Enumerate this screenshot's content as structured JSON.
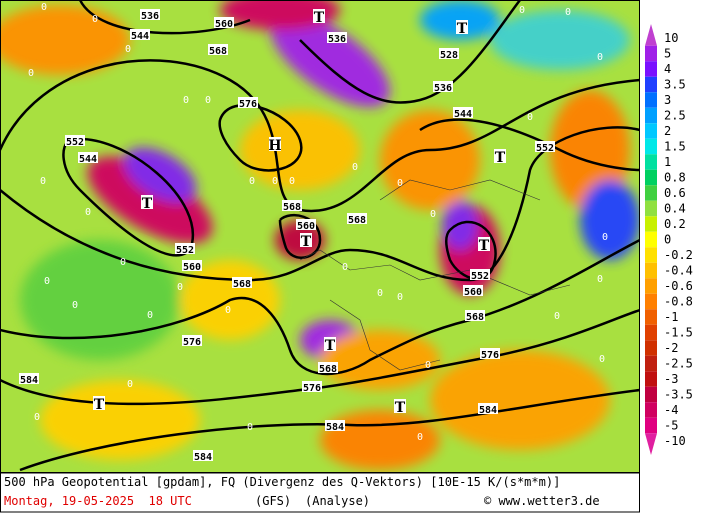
{
  "map": {
    "contour_labels": [
      "536",
      "560",
      "568",
      "544",
      "536",
      "528",
      "536",
      "544",
      "576",
      "552",
      "544",
      "552",
      "552",
      "560",
      "568",
      "560",
      "568",
      "552",
      "560",
      "568",
      "576",
      "568",
      "576",
      "568",
      "576",
      "584",
      "584",
      "584",
      "584"
    ],
    "centers": [
      "T",
      "T",
      "T",
      "T",
      "T",
      "T",
      "T",
      "T",
      "T",
      "H"
    ],
    "field_labels": [
      "0",
      "0",
      "0",
      "0",
      "0",
      "0",
      "0",
      "0",
      "0",
      "0",
      "0",
      "0",
      "0",
      "0",
      "0",
      "0",
      "0",
      "0",
      "0",
      "0",
      "0",
      "0",
      "0",
      "0",
      "0",
      "0",
      "0",
      "0",
      "0",
      "0",
      "0",
      "0",
      "0",
      "0",
      "0",
      "0"
    ]
  },
  "colorbar": {
    "labels": [
      "10",
      "5",
      "4",
      "3.5",
      "3",
      "2.5",
      "2",
      "1.5",
      "1",
      "0.8",
      "0.6",
      "0.4",
      "0.2",
      "0",
      "-0.2",
      "-0.4",
      "-0.6",
      "-0.8",
      "-1",
      "-1.5",
      "-2",
      "-2.5",
      "-3",
      "-3.5",
      "-4",
      "-5",
      "-10"
    ],
    "colors": [
      "#c040d0",
      "#a020e8",
      "#7a10ff",
      "#2040ff",
      "#0070ff",
      "#00a0ff",
      "#00c8ff",
      "#00e8e8",
      "#00e0a0",
      "#00d060",
      "#40d040",
      "#90e040",
      "#c8f000",
      "#ffff00",
      "#ffe000",
      "#ffc000",
      "#ffa000",
      "#ff8000",
      "#f06000",
      "#e04000",
      "#d03000",
      "#c02010",
      "#c01010",
      "#c00040",
      "#d00060",
      "#e00080",
      "#e020a0"
    ]
  },
  "footer": {
    "title": "500 hPa Geopotential [gpdam], FQ (Divergenz des Q-Vektors) [10E-15 K/(s*m*m)]",
    "date": "Montag, 19-05-2025  18 UTC",
    "model": "(GFS)",
    "run": "(Analyse)",
    "credit": "© www.wetter3.de"
  }
}
